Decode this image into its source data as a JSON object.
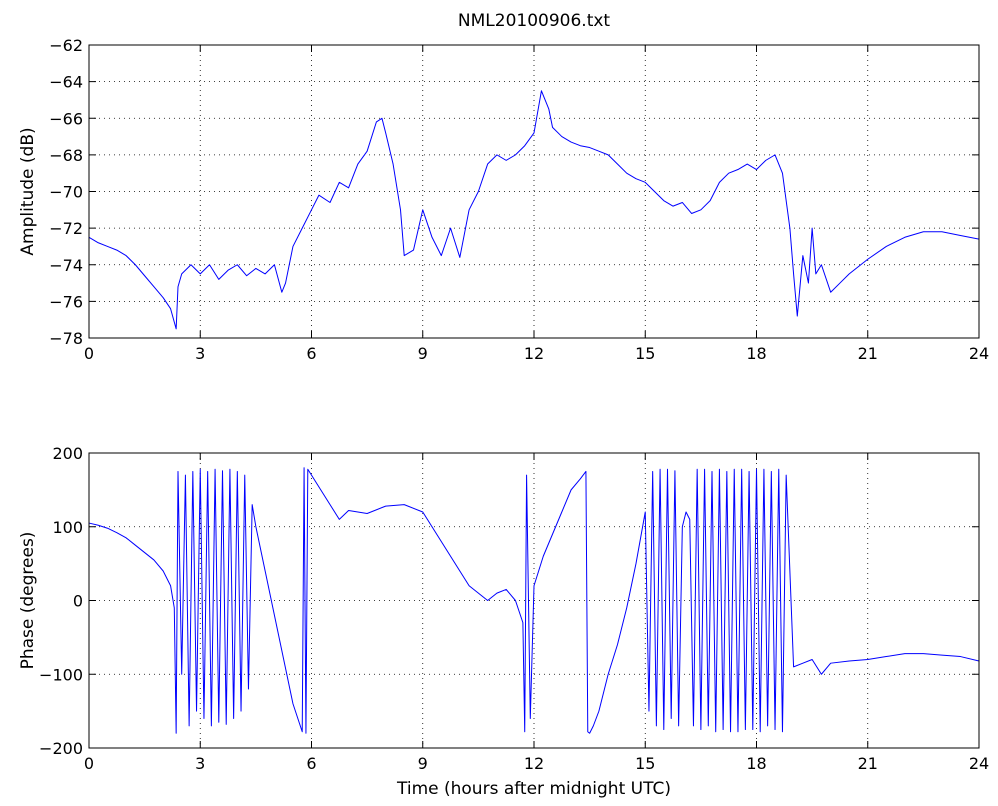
{
  "figure": {
    "title": "NML20100906.txt"
  },
  "chart_data": [
    {
      "type": "line",
      "title": "NML20100906.txt",
      "xlabel": "",
      "ylabel": "Amplitude (dB)",
      "xlim": [
        0,
        24
      ],
      "ylim": [
        -78,
        -62
      ],
      "xticks": [
        0,
        3,
        6,
        9,
        12,
        15,
        18,
        21,
        24
      ],
      "xtick_labels": [
        "0",
        "3",
        "6",
        "9",
        "12",
        "15",
        "18",
        "21",
        "24"
      ],
      "yticks": [
        -78,
        -76,
        -74,
        -72,
        -70,
        -68,
        -66,
        -64,
        -62
      ],
      "ytick_labels": [
        "−78",
        "−76",
        "−74",
        "−72",
        "−70",
        "−68",
        "−66",
        "−64",
        "−62"
      ],
      "grid": true,
      "color": "#0000ff",
      "x": [
        0,
        0.25,
        0.5,
        0.75,
        1.0,
        1.25,
        1.5,
        1.75,
        2.0,
        2.2,
        2.35,
        2.4,
        2.5,
        2.75,
        3.0,
        3.25,
        3.5,
        3.75,
        4.0,
        4.25,
        4.5,
        4.75,
        5.0,
        5.2,
        5.3,
        5.5,
        5.75,
        6.0,
        6.2,
        6.5,
        6.75,
        7.0,
        7.25,
        7.5,
        7.75,
        7.9,
        8.0,
        8.2,
        8.4,
        8.5,
        8.75,
        9.0,
        9.25,
        9.5,
        9.75,
        10.0,
        10.25,
        10.5,
        10.75,
        11.0,
        11.25,
        11.5,
        11.75,
        12.0,
        12.2,
        12.4,
        12.5,
        12.75,
        13.0,
        13.25,
        13.5,
        13.75,
        14.0,
        14.25,
        14.5,
        14.75,
        15.0,
        15.25,
        15.5,
        15.75,
        16.0,
        16.25,
        16.5,
        16.75,
        17.0,
        17.25,
        17.5,
        17.75,
        18.0,
        18.25,
        18.5,
        18.7,
        18.9,
        19.0,
        19.1,
        19.25,
        19.4,
        19.5,
        19.6,
        19.75,
        20.0,
        20.25,
        20.5,
        21.0,
        21.5,
        22.0,
        22.5,
        23.0,
        23.5,
        24.0
      ],
      "y": [
        -72.5,
        -72.8,
        -73.0,
        -73.2,
        -73.5,
        -74.0,
        -74.6,
        -75.2,
        -75.8,
        -76.4,
        -77.5,
        -75.2,
        -74.5,
        -74.0,
        -74.5,
        -74.0,
        -74.8,
        -74.3,
        -74.0,
        -74.6,
        -74.2,
        -74.5,
        -74.0,
        -75.5,
        -75.0,
        -73.0,
        -72.0,
        -71.0,
        -70.2,
        -70.6,
        -69.5,
        -69.8,
        -68.5,
        -67.8,
        -66.2,
        -66.0,
        -66.8,
        -68.5,
        -71.0,
        -73.5,
        -73.2,
        -71.0,
        -72.5,
        -73.5,
        -72.0,
        -73.6,
        -71.0,
        -70.0,
        -68.5,
        -68.0,
        -68.3,
        -68.0,
        -67.5,
        -66.8,
        -64.5,
        -65.5,
        -66.5,
        -67.0,
        -67.3,
        -67.5,
        -67.6,
        -67.8,
        -68.0,
        -68.5,
        -69.0,
        -69.3,
        -69.5,
        -70.0,
        -70.5,
        -70.8,
        -70.6,
        -71.2,
        -71.0,
        -70.5,
        -69.5,
        -69.0,
        -68.8,
        -68.5,
        -68.8,
        -68.3,
        -68.0,
        -69.0,
        -72.0,
        -74.5,
        -76.8,
        -73.5,
        -75.0,
        -72.0,
        -74.5,
        -74.0,
        -75.5,
        -75.0,
        -74.5,
        -73.7,
        -73.0,
        -72.5,
        -72.2,
        -72.2,
        -72.4,
        -72.6
      ]
    },
    {
      "type": "line",
      "title": "",
      "xlabel": "Time (hours after midnight UTC)",
      "ylabel": "Phase (degrees)",
      "xlim": [
        0,
        24
      ],
      "ylim": [
        -200,
        200
      ],
      "xticks": [
        0,
        3,
        6,
        9,
        12,
        15,
        18,
        21,
        24
      ],
      "xtick_labels": [
        "0",
        "3",
        "6",
        "9",
        "12",
        "15",
        "18",
        "21",
        "24"
      ],
      "yticks": [
        -200,
        -100,
        0,
        100,
        200
      ],
      "ytick_labels": [
        "−200",
        "−100",
        "0",
        "100",
        "200"
      ],
      "grid": true,
      "color": "#0000ff",
      "x": [
        0,
        0.25,
        0.5,
        0.75,
        1.0,
        1.25,
        1.5,
        1.75,
        2.0,
        2.2,
        2.3,
        2.35,
        2.4,
        2.5,
        2.6,
        2.7,
        2.8,
        2.9,
        3.0,
        3.1,
        3.2,
        3.3,
        3.4,
        3.5,
        3.6,
        3.7,
        3.8,
        3.9,
        4.0,
        4.1,
        4.2,
        4.3,
        4.4,
        4.5,
        4.75,
        5.0,
        5.25,
        5.5,
        5.75,
        5.8,
        5.85,
        5.9,
        6.0,
        6.25,
        6.5,
        6.75,
        7.0,
        7.5,
        8.0,
        8.5,
        9.0,
        9.25,
        9.5,
        9.75,
        10.0,
        10.25,
        10.5,
        10.75,
        11.0,
        11.25,
        11.5,
        11.7,
        11.75,
        11.8,
        11.9,
        12.0,
        12.25,
        12.5,
        12.75,
        13.0,
        13.25,
        13.4,
        13.45,
        13.5,
        13.6,
        13.75,
        14.0,
        14.25,
        14.5,
        14.75,
        15.0,
        15.1,
        15.2,
        15.3,
        15.4,
        15.5,
        15.6,
        15.7,
        15.8,
        15.9,
        16.0,
        16.1,
        16.2,
        16.3,
        16.4,
        16.5,
        16.6,
        16.7,
        16.8,
        16.9,
        17.0,
        17.1,
        17.2,
        17.3,
        17.4,
        17.5,
        17.6,
        17.7,
        17.8,
        17.9,
        18.0,
        18.1,
        18.2,
        18.3,
        18.4,
        18.5,
        18.6,
        18.7,
        18.8,
        19.0,
        19.25,
        19.5,
        19.75,
        20.0,
        20.5,
        21.0,
        21.5,
        22.0,
        22.5,
        23.0,
        23.5,
        24.0
      ],
      "y": [
        105,
        102,
        98,
        92,
        85,
        75,
        65,
        55,
        40,
        20,
        -10,
        -180,
        175,
        -100,
        170,
        -170,
        175,
        -150,
        178,
        -160,
        175,
        -170,
        178,
        -165,
        176,
        -168,
        178,
        -160,
        175,
        -150,
        170,
        -120,
        130,
        100,
        40,
        -20,
        -80,
        -140,
        -178,
        180,
        -180,
        178,
        170,
        150,
        130,
        110,
        122,
        118,
        128,
        130,
        120,
        100,
        80,
        60,
        40,
        20,
        10,
        0,
        10,
        15,
        0,
        -30,
        -178,
        170,
        -160,
        20,
        60,
        90,
        120,
        150,
        165,
        175,
        -178,
        -180,
        -170,
        -150,
        -100,
        -60,
        -10,
        50,
        120,
        -150,
        175,
        -170,
        178,
        -175,
        178,
        -160,
        176,
        -170,
        100,
        120,
        110,
        -170,
        178,
        -175,
        178,
        -170,
        175,
        -178,
        178,
        -175,
        175,
        -178,
        178,
        -178,
        178,
        -175,
        175,
        -175,
        178,
        -178,
        178,
        -170,
        175,
        -175,
        178,
        -178,
        170,
        -90,
        -85,
        -80,
        -100,
        -85,
        -82,
        -80,
        -76,
        -72,
        -72,
        -74,
        -76,
        -82
      ]
    }
  ]
}
